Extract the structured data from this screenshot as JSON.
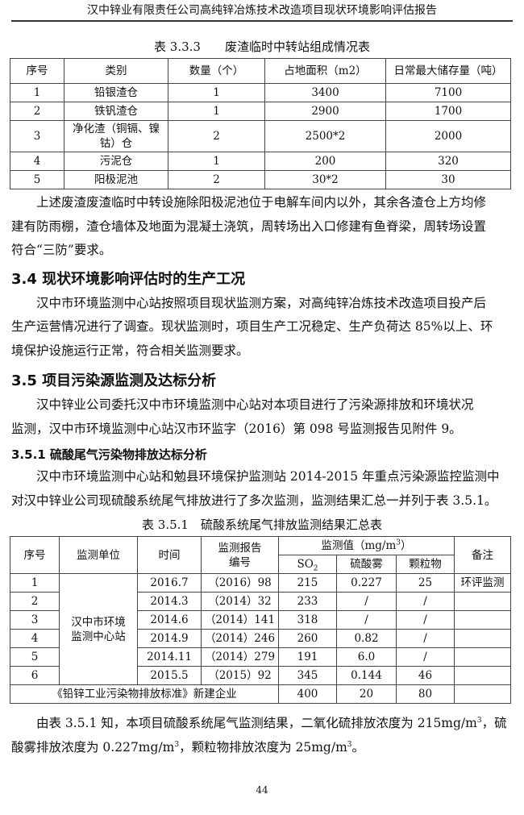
{
  "header": {
    "title": "汉中锌业有限责任公司高纯锌冶炼技术改造项目现状环境影响评估报告"
  },
  "table1": {
    "caption": "表 3.3.3　　废渣临时中转站组成情况表",
    "headers": [
      "序号",
      "类别",
      "数量（个）",
      "占地面积（m2）",
      "日常最大储存量（吨）"
    ],
    "rows": [
      [
        "1",
        "铅银渣仓",
        "1",
        "3400",
        "7100"
      ],
      [
        "2",
        "铁钒渣仓",
        "1",
        "2900",
        "1700"
      ],
      [
        "3",
        "净化渣（铜镉、镍钴）仓",
        "2",
        "2500*2",
        "2000"
      ],
      [
        "4",
        "污泥仓",
        "1",
        "200",
        "320"
      ],
      [
        "5",
        "阳极泥池",
        "2",
        "30*2",
        "30"
      ]
    ]
  },
  "para1": [
    "上述废渣废渣临时中转设施除阳极泥池位于电解车间内以外，其余各渣仓上方均修",
    "建有防雨棚，渣仓墙体及地面为混凝土浇筑，周转场出入口修建有鱼脊梁，周转场设置",
    "符合“三防”要求。"
  ],
  "section34": {
    "title": "3.4  现状环境影响评估时的生产工况"
  },
  "para2": [
    "汉中市环境监测中心站按照项目现状监测方案，对高纯锌冶炼技术改造项目投产后",
    "生产运营情况进行了调查。现状监测时，项目生产工况稳定、生产负荷达 85%以上、环",
    "境保护设施运行正常，符合相关监测要求。"
  ],
  "section35": {
    "title": "3.5 项目污染源监测及达标分析"
  },
  "para3": [
    "汉中锌业公司委托汉中市环境监测中心站对本项目进行了污染源排放和环境状况",
    "监测，汉中市环境监测中心站汉市环监字（2016）第 098 号监测报告见附件 9。"
  ],
  "section351": {
    "title": "3.5.1 硫酸尾气污染物排放达标分析"
  },
  "para4": [
    "汉中市环境监测中心站和勉县环境保护监测站 2014-2015 年重点污染源监控监测中",
    "对汉中锌业公司现硫酸系统尾气排放进行了多次监测，监测结果汇总一并列于表 3.5.1。"
  ],
  "table2": {
    "caption": "表 3.5.1　硫酸系统尾气排放监测结果汇总表",
    "headers": {
      "no": "序号",
      "unit": "监测单位",
      "time": "时间",
      "report": "监测报告",
      "report2": "编号",
      "values": "监测值（mg/m",
      "values_sup": "3",
      "values_end": "）",
      "so2": "SO",
      "so2_sub": "2",
      "mist": "硫酸雾",
      "particle": "颗粒物",
      "remark": "备注"
    },
    "unit_name": "汉中市环境",
    "unit_name2": "监测中心站",
    "rows": [
      [
        "1",
        "2016.7",
        "（2016）98",
        "215",
        "0.227",
        "25",
        "环评监测"
      ],
      [
        "2",
        "2014.3",
        "（2014）32",
        "233",
        "/",
        "/",
        ""
      ],
      [
        "3",
        "2014.6",
        "（2014）141",
        "318",
        "/",
        "/",
        ""
      ],
      [
        "4",
        "2014.9",
        "（2014）246",
        "260",
        "0.82",
        "/",
        ""
      ],
      [
        "5",
        "2014.11",
        "（2014）279",
        "191",
        "6.0",
        "/",
        ""
      ],
      [
        "6",
        "2015.5",
        "（2015）92",
        "345",
        "0.144",
        "46",
        ""
      ]
    ],
    "standard": {
      "label": "《铅锌工业污染物排放标准》新建企业",
      "so2": "400",
      "mist": "20",
      "particle": "80"
    }
  },
  "para5": {
    "l1a": "由表 3.5.1 知，本项目硫酸系统尾气监测结果，二氧化硫排放浓度为 215mg/m",
    "l1sup": "3",
    "l1b": "，硫",
    "l2a": "酸雾排放浓度为 0.227mg/m",
    "l2sup": "3",
    "l2b": "，颗粒物排放浓度为 25mg/m",
    "l2sup2": "3",
    "l2c": "。"
  },
  "page_number": "44"
}
